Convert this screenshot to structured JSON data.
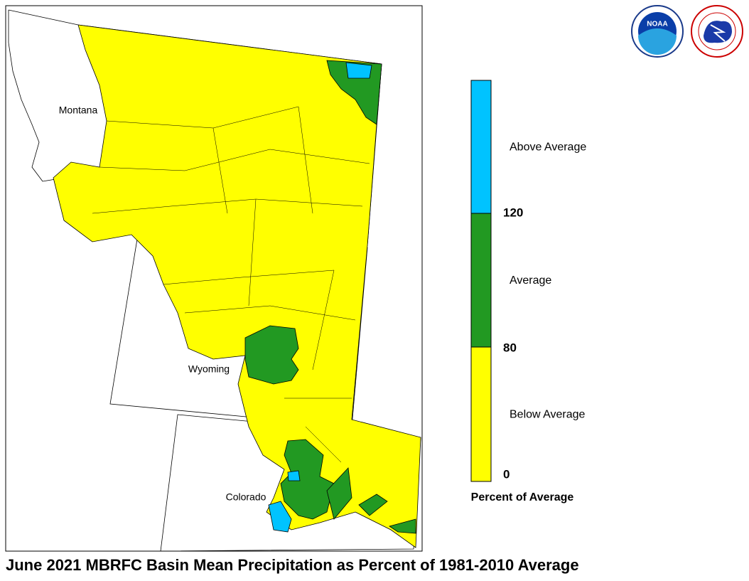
{
  "map": {
    "title": "June 2021 MBRFC Basin Mean Precipitation as Percent of 1981-2010 Average",
    "states": [
      "Montana",
      "Wyoming",
      "Colorado"
    ],
    "logos": {
      "noaa": "NOAA"
    }
  },
  "legend": {
    "title": "Percent of Average",
    "ticks": [
      0,
      80,
      120
    ],
    "categories": [
      {
        "label": "Below Average",
        "color": "#ffff00"
      },
      {
        "label": "Average",
        "color": "#229922"
      },
      {
        "label": "Above Average",
        "color": "#00c3ff"
      }
    ]
  }
}
